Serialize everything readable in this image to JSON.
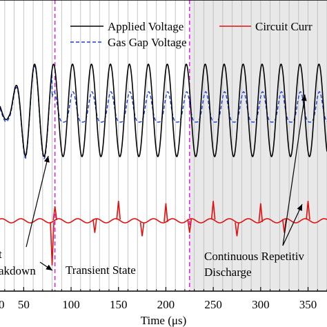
{
  "chart_data": {
    "type": "line",
    "xlabel": "Time (μs)",
    "xlim": [
      25,
      370
    ],
    "x_ticks": [
      50,
      100,
      150,
      200,
      250,
      300,
      350
    ],
    "x_tick_labels": [
      "50",
      "100",
      "150",
      "200",
      "250",
      "300",
      "350"
    ],
    "x_tick_labels_visible_partial": [
      "0"
    ],
    "grid": "vertical lines at 10 μs steps",
    "shaded_region": {
      "from": 225,
      "to": 370,
      "color": "#e8e8e8"
    },
    "dividers": [
      {
        "x": 83,
        "color": "#e020e0",
        "style": "dashed"
      },
      {
        "x": 225,
        "color": "#e020e0",
        "style": "dashed"
      }
    ],
    "series": [
      {
        "name": "Applied Voltage",
        "color": "#000000",
        "style": "solid",
        "period_us": 20,
        "peaks_x": [
          62,
          81,
          101,
          121,
          141,
          161,
          181,
          201,
          221,
          241,
          261,
          281,
          301,
          321,
          341,
          361
        ],
        "note": "sinusoid, start-up ramp before the first peak at 62 μs"
      },
      {
        "name": "Gas Gap Voltage",
        "color": "#1a3fd0",
        "style": "dashed",
        "note": "follows applied voltage until breakdown near 80 μs, then clamped to smaller amplitude"
      },
      {
        "name": "Circuit Current",
        "color": "#e01010",
        "style": "solid",
        "spikes": [
          {
            "x": 80,
            "sign": -1,
            "size": "large"
          },
          {
            "x": 83,
            "sign": 1,
            "size": "small"
          },
          {
            "x": 125,
            "sign": -1,
            "size": "small"
          },
          {
            "x": 150,
            "sign": 1,
            "size": "medium"
          },
          {
            "x": 175,
            "sign": -1,
            "size": "small"
          },
          {
            "x": 200,
            "sign": 1,
            "size": "medium"
          },
          {
            "x": 225,
            "sign": -1,
            "size": "small"
          },
          {
            "x": 250,
            "sign": 1,
            "size": "medium"
          },
          {
            "x": 275,
            "sign": -1,
            "size": "small"
          },
          {
            "x": 300,
            "sign": 1,
            "size": "medium"
          },
          {
            "x": 325,
            "sign": -1,
            "size": "small"
          },
          {
            "x": 350,
            "sign": 1,
            "size": "medium"
          }
        ]
      }
    ],
    "legend": [
      {
        "label": "Applied Voltage",
        "color": "#000000",
        "style": "solid"
      },
      {
        "label": "Circuit Curr",
        "color": "#e01010",
        "style": "solid"
      },
      {
        "label": "Gas Gap Voltage",
        "color": "#1a3fd0",
        "style": "dashed"
      }
    ],
    "legend_placement": "top",
    "annotations": [
      {
        "text": "t",
        "position_note": "left edge, clipped"
      },
      {
        "text": "akdown",
        "position_note": "left edge, clipped"
      },
      {
        "text": "Transient State"
      },
      {
        "text": "Continuous Repetitiv"
      },
      {
        "text": "Discharge"
      }
    ]
  }
}
